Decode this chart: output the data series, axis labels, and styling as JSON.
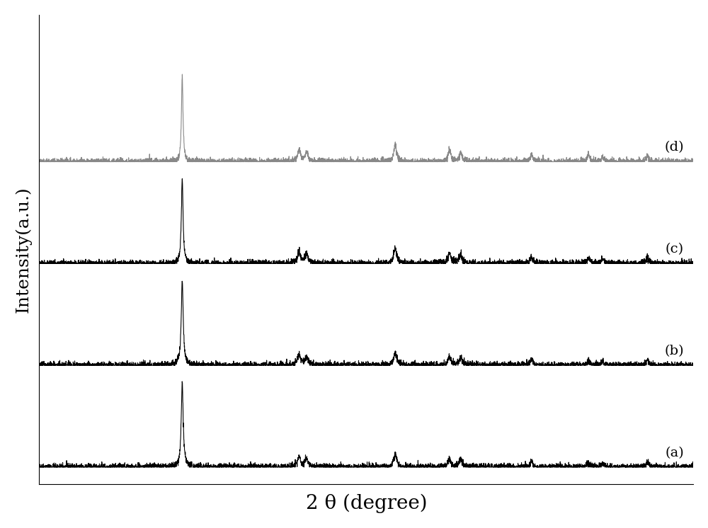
{
  "title": "",
  "xlabel": "2 θ (degree)",
  "ylabel": "Intensity(a.u.)",
  "xlim": [
    10,
    80
  ],
  "labels": [
    "(a)",
    "(b)",
    "(c)",
    "(d)"
  ],
  "background_color": "#ffffff",
  "line_colors": [
    "#000000",
    "#000000",
    "#000000",
    "#888888"
  ],
  "offsets": [
    0.0,
    0.18,
    0.36,
    0.54
  ],
  "peaks": [
    [
      25.3,
      37.8,
      38.6,
      48.1,
      53.9,
      55.1,
      62.7,
      68.8,
      70.3,
      75.1
    ],
    [
      25.3,
      37.8,
      38.6,
      48.1,
      53.9,
      55.1,
      62.7,
      68.8,
      70.3,
      75.1
    ],
    [
      25.3,
      37.8,
      38.6,
      48.1,
      53.9,
      55.1,
      62.7,
      68.8,
      70.3,
      75.1
    ],
    [
      25.3,
      37.8,
      38.6,
      48.1,
      53.9,
      55.1,
      62.7,
      68.8,
      70.3,
      75.1
    ]
  ],
  "peak_heights": [
    [
      1.0,
      0.12,
      0.1,
      0.14,
      0.1,
      0.09,
      0.07,
      0.06,
      0.05,
      0.06
    ],
    [
      1.0,
      0.12,
      0.1,
      0.14,
      0.1,
      0.09,
      0.07,
      0.06,
      0.05,
      0.06
    ],
    [
      1.0,
      0.14,
      0.11,
      0.18,
      0.12,
      0.1,
      0.08,
      0.07,
      0.06,
      0.07
    ],
    [
      1.0,
      0.15,
      0.12,
      0.2,
      0.13,
      0.11,
      0.09,
      0.08,
      0.06,
      0.08
    ]
  ],
  "peak_widths": [
    [
      0.25,
      0.4,
      0.4,
      0.4,
      0.4,
      0.4,
      0.35,
      0.35,
      0.35,
      0.35
    ],
    [
      0.25,
      0.4,
      0.4,
      0.4,
      0.4,
      0.4,
      0.35,
      0.35,
      0.35,
      0.35
    ],
    [
      0.22,
      0.4,
      0.4,
      0.38,
      0.38,
      0.38,
      0.32,
      0.32,
      0.32,
      0.32
    ],
    [
      0.2,
      0.35,
      0.35,
      0.35,
      0.35,
      0.35,
      0.3,
      0.3,
      0.3,
      0.3
    ]
  ],
  "noise_amplitude": [
    0.003,
    0.003,
    0.003,
    0.003
  ],
  "scale": 0.15,
  "xlabel_fontsize": 20,
  "ylabel_fontsize": 18,
  "label_fontsize": 14
}
